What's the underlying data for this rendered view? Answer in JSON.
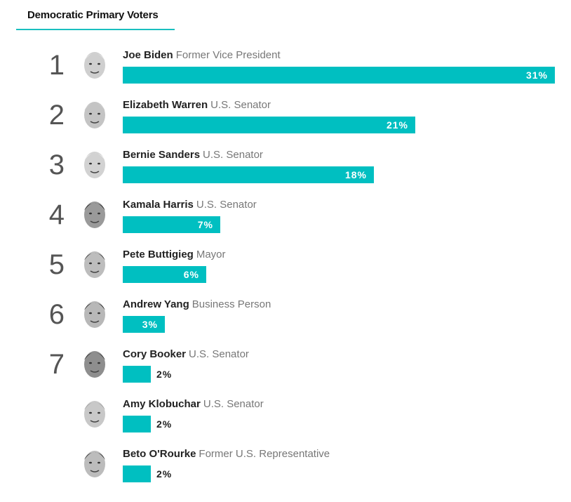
{
  "header": {
    "tab_label": "Democratic Primary Voters"
  },
  "colors": {
    "bar": "#00bfc1",
    "accent_underline": "#1abfbf",
    "rank": "#555555",
    "title_text": "#777777"
  },
  "chart_data": {
    "type": "bar",
    "orientation": "horizontal",
    "title": "Democratic Primary Voters",
    "value_suffix": "%",
    "xlim": [
      0,
      31
    ],
    "grid": false,
    "legend": "none",
    "rows": [
      {
        "rank": "1",
        "name": "Joe Biden",
        "title": "Former Vice President",
        "value": 31,
        "label": "31%"
      },
      {
        "rank": "2",
        "name": "Elizabeth Warren",
        "title": "U.S. Senator",
        "value": 21,
        "label": "21%"
      },
      {
        "rank": "3",
        "name": "Bernie Sanders",
        "title": "U.S. Senator",
        "value": 18,
        "label": "18%"
      },
      {
        "rank": "4",
        "name": "Kamala Harris",
        "title": "U.S. Senator",
        "value": 7,
        "label": "7%"
      },
      {
        "rank": "5",
        "name": "Pete Buttigieg",
        "title": "Mayor",
        "value": 6,
        "label": "6%"
      },
      {
        "rank": "6",
        "name": "Andrew Yang",
        "title": "Business Person",
        "value": 3,
        "label": "3%"
      },
      {
        "rank": "7",
        "name": "Cory Booker",
        "title": "U.S. Senator",
        "value": 2,
        "label": "2%"
      },
      {
        "rank": "",
        "name": "Amy Klobuchar",
        "title": "U.S. Senator",
        "value": 2,
        "label": "2%"
      },
      {
        "rank": "",
        "name": "Beto O'Rourke",
        "title": "Former U.S. Representative",
        "value": 2,
        "label": "2%"
      }
    ]
  }
}
